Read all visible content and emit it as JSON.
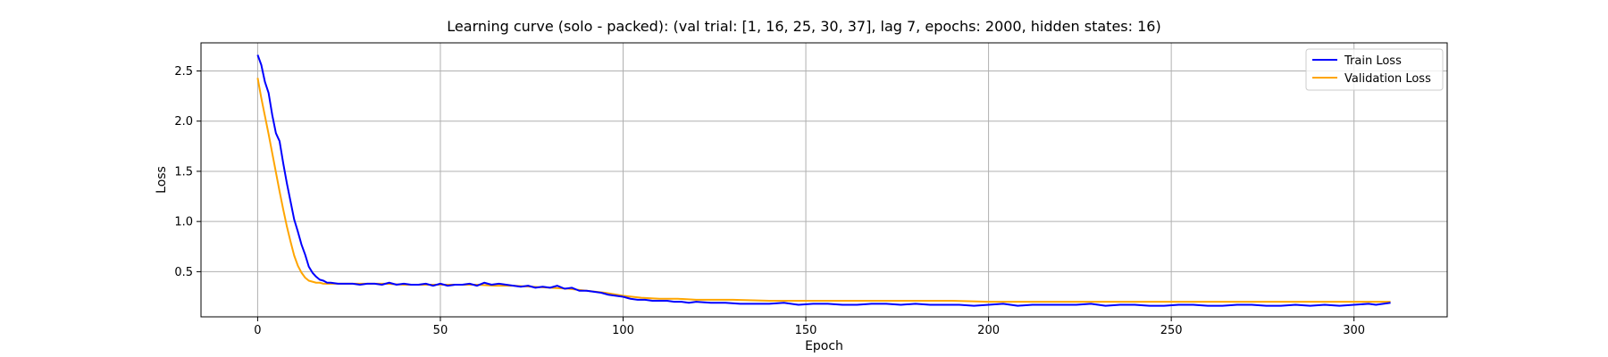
{
  "chart_data": {
    "type": "line",
    "title": "Learning curve (solo - packed): (val trial: [1, 16, 25, 30, 37], lag 7, epochs: 2000, hidden states: 16)",
    "xlabel": "Epoch",
    "ylabel": "Loss",
    "xlim": [
      -15.5,
      325.5
    ],
    "ylim": [
      0.05,
      2.78
    ],
    "xticks": [
      0,
      50,
      100,
      150,
      200,
      250,
      300
    ],
    "yticks": [
      0.5,
      1.0,
      1.5,
      2.0,
      2.5
    ],
    "xtick_labels": [
      "0",
      "50",
      "100",
      "150",
      "200",
      "250",
      "300"
    ],
    "ytick_labels": [
      "0.5",
      "1.0",
      "1.5",
      "2.0",
      "2.5"
    ],
    "grid": true,
    "legend_position": "top-right",
    "series": [
      {
        "name": "Train Loss",
        "color": "#0000ff",
        "x": [
          0,
          1,
          2,
          3,
          4,
          5,
          6,
          7,
          8,
          9,
          10,
          11,
          12,
          13,
          14,
          15,
          16,
          17,
          18,
          19,
          20,
          22,
          24,
          26,
          28,
          30,
          32,
          34,
          36,
          38,
          40,
          42,
          44,
          46,
          48,
          50,
          52,
          54,
          56,
          58,
          60,
          62,
          64,
          66,
          68,
          70,
          72,
          74,
          76,
          78,
          80,
          82,
          84,
          86,
          88,
          90,
          92,
          94,
          96,
          98,
          100,
          102,
          104,
          106,
          108,
          110,
          112,
          114,
          116,
          118,
          120,
          124,
          128,
          132,
          136,
          140,
          144,
          148,
          152,
          156,
          160,
          164,
          168,
          172,
          176,
          180,
          184,
          188,
          192,
          196,
          200,
          204,
          208,
          212,
          216,
          220,
          224,
          228,
          232,
          236,
          240,
          244,
          248,
          252,
          256,
          260,
          264,
          268,
          272,
          276,
          280,
          284,
          288,
          292,
          296,
          300,
          304,
          306,
          308,
          310
        ],
        "y": [
          2.66,
          2.56,
          2.39,
          2.28,
          2.06,
          1.88,
          1.8,
          1.58,
          1.38,
          1.2,
          1.02,
          0.9,
          0.77,
          0.67,
          0.55,
          0.49,
          0.45,
          0.42,
          0.41,
          0.39,
          0.39,
          0.38,
          0.38,
          0.38,
          0.37,
          0.38,
          0.38,
          0.37,
          0.39,
          0.37,
          0.38,
          0.37,
          0.37,
          0.38,
          0.36,
          0.38,
          0.36,
          0.37,
          0.37,
          0.38,
          0.36,
          0.39,
          0.37,
          0.38,
          0.37,
          0.36,
          0.35,
          0.36,
          0.34,
          0.35,
          0.34,
          0.36,
          0.33,
          0.34,
          0.31,
          0.31,
          0.3,
          0.29,
          0.27,
          0.26,
          0.25,
          0.23,
          0.22,
          0.22,
          0.21,
          0.21,
          0.21,
          0.2,
          0.2,
          0.19,
          0.2,
          0.19,
          0.19,
          0.18,
          0.18,
          0.18,
          0.19,
          0.17,
          0.18,
          0.18,
          0.17,
          0.17,
          0.18,
          0.18,
          0.17,
          0.18,
          0.17,
          0.17,
          0.17,
          0.16,
          0.17,
          0.18,
          0.16,
          0.17,
          0.17,
          0.17,
          0.17,
          0.18,
          0.16,
          0.17,
          0.17,
          0.16,
          0.16,
          0.17,
          0.17,
          0.16,
          0.16,
          0.17,
          0.17,
          0.16,
          0.16,
          0.17,
          0.16,
          0.17,
          0.16,
          0.17,
          0.18,
          0.17,
          0.18,
          0.19
        ]
      },
      {
        "name": "Validation Loss",
        "color": "#ffa500",
        "x": [
          0,
          1,
          2,
          3,
          4,
          5,
          6,
          7,
          8,
          9,
          10,
          11,
          12,
          13,
          14,
          15,
          16,
          17,
          18,
          19,
          20,
          25,
          30,
          35,
          40,
          45,
          50,
          55,
          60,
          65,
          70,
          75,
          80,
          85,
          90,
          95,
          100,
          105,
          110,
          115,
          120,
          130,
          140,
          150,
          160,
          170,
          180,
          190,
          200,
          210,
          220,
          230,
          240,
          250,
          260,
          270,
          280,
          290,
          300,
          305,
          310
        ],
        "y": [
          2.43,
          2.23,
          2.05,
          1.87,
          1.68,
          1.49,
          1.3,
          1.12,
          0.95,
          0.8,
          0.66,
          0.56,
          0.49,
          0.44,
          0.41,
          0.4,
          0.39,
          0.39,
          0.38,
          0.38,
          0.38,
          0.38,
          0.38,
          0.38,
          0.37,
          0.37,
          0.37,
          0.37,
          0.37,
          0.36,
          0.36,
          0.35,
          0.34,
          0.33,
          0.31,
          0.29,
          0.26,
          0.24,
          0.23,
          0.23,
          0.22,
          0.22,
          0.21,
          0.21,
          0.21,
          0.21,
          0.21,
          0.21,
          0.2,
          0.2,
          0.2,
          0.2,
          0.2,
          0.2,
          0.2,
          0.2,
          0.2,
          0.2,
          0.2,
          0.2,
          0.2
        ]
      }
    ]
  }
}
